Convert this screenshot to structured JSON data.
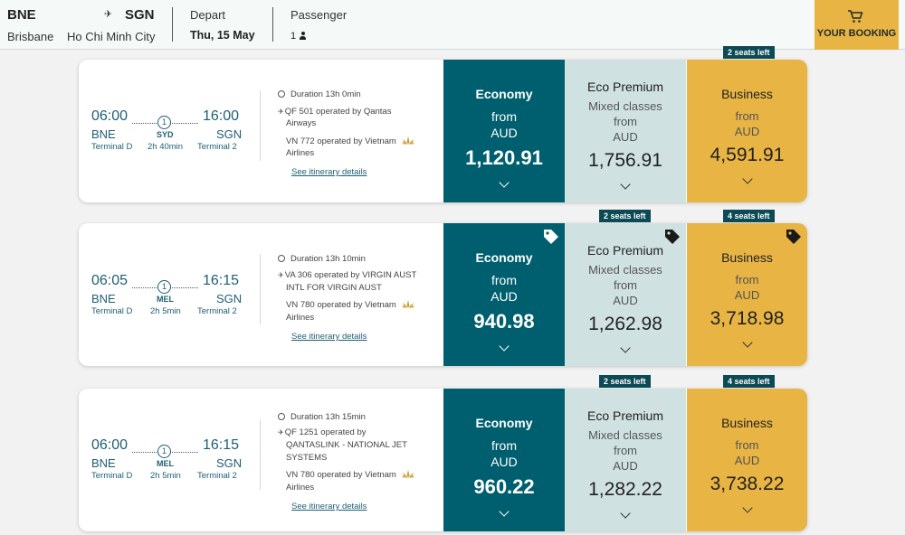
{
  "header": {
    "from_code": "BNE",
    "to_code": "SGN",
    "from_city": "Brisbane",
    "to_city": "Ho Chi Minh City",
    "depart_label": "Depart",
    "depart_date": "Thu, 15 May",
    "passenger_label": "Passenger",
    "passenger_count": "1",
    "booking_label": "YOUR BOOKING"
  },
  "colors": {
    "economy": "#005f6e",
    "premium": "#cfe2e1",
    "business": "#e8b444",
    "badge": "#0c4a55",
    "accent_text": "#1e5f74"
  },
  "flights": [
    {
      "depart_time": "06:00",
      "arrive_time": "16:00",
      "stops": "1",
      "origin": "BNE",
      "destination": "SGN",
      "stop_code": "SYD",
      "origin_terminal": "Terminal D",
      "dest_terminal": "Terminal 2",
      "layover": "2h 40min",
      "duration": "Duration 13h 0min",
      "seg1_line1": "QF 501  operated by Qantas",
      "seg1_line2": "Airways",
      "seg2_line1": "VN 772  operated by Vietnam",
      "seg2_line2": "Airlines",
      "itinerary_link": "See itinerary details",
      "economy": {
        "title": "Economy",
        "from": "from",
        "currency": "AUD",
        "price": "1,120.91"
      },
      "premium": {
        "title": "Eco Premium",
        "note": "Mixed classes",
        "from": "from",
        "currency": "AUD",
        "price": "1,756.91",
        "seats": ""
      },
      "business": {
        "title": "Business",
        "from": "from",
        "currency": "AUD",
        "price": "4,591.91",
        "seats": "2 seats left"
      }
    },
    {
      "depart_time": "06:05",
      "arrive_time": "16:15",
      "stops": "1",
      "origin": "BNE",
      "destination": "SGN",
      "stop_code": "MEL",
      "origin_terminal": "Terminal D",
      "dest_terminal": "Terminal 2",
      "layover": "2h 5min",
      "duration": "Duration 13h 10min",
      "seg1_line1": "VA 306  operated by VIRGIN AUST",
      "seg1_line2": "INTL FOR VIRGIN AUST",
      "seg2_line1": "VN 780  operated by Vietnam",
      "seg2_line2": "Airlines",
      "itinerary_link": "See itinerary details",
      "economy": {
        "title": "Economy",
        "from": "from",
        "currency": "AUD",
        "price": "940.98"
      },
      "premium": {
        "title": "Eco Premium",
        "note": "Mixed classes",
        "from": "from",
        "currency": "AUD",
        "price": "1,262.98",
        "seats": "2 seats left"
      },
      "business": {
        "title": "Business",
        "from": "from",
        "currency": "AUD",
        "price": "3,718.98",
        "seats": "4 seats left"
      }
    },
    {
      "depart_time": "06:00",
      "arrive_time": "16:15",
      "stops": "1",
      "origin": "BNE",
      "destination": "SGN",
      "stop_code": "MEL",
      "origin_terminal": "Terminal D",
      "dest_terminal": "Terminal 2",
      "layover": "2h 5min",
      "duration": "Duration 13h 15min",
      "seg1_line1": "QF 1251  operated by",
      "seg1_line2": "QANTASLINK - NATIONAL JET",
      "seg1_line3": "SYSTEMS",
      "seg2_line1": "VN 780  operated by Vietnam",
      "seg2_line2": "Airlines",
      "itinerary_link": "See itinerary details",
      "economy": {
        "title": "Economy",
        "from": "from",
        "currency": "AUD",
        "price": "960.22"
      },
      "premium": {
        "title": "Eco Premium",
        "note": "Mixed classes",
        "from": "from",
        "currency": "AUD",
        "price": "1,282.22",
        "seats": "2 seats left"
      },
      "business": {
        "title": "Business",
        "from": "from",
        "currency": "AUD",
        "price": "3,738.22",
        "seats": "4 seats left"
      }
    }
  ]
}
